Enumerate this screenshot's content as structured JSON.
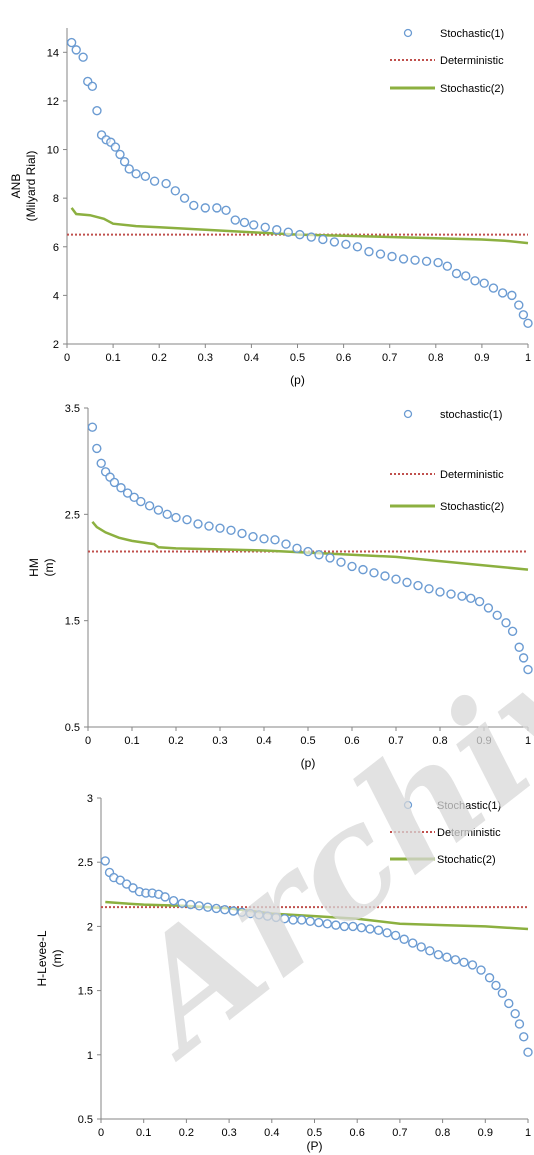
{
  "colors": {
    "stochastic1_marker": "#6b9bd2",
    "deterministic_line": "#c0504d",
    "stochastic2_line": "#8cb040",
    "axis": "#868686"
  },
  "watermark": {
    "text": "Archive"
  },
  "chart_data": [
    {
      "type": "line",
      "xlabel": "(p)",
      "ylabel_lines": [
        "ANB",
        "(Milyard Rial)"
      ],
      "xlim": [
        0,
        1
      ],
      "ylim": [
        2,
        15
      ],
      "xticks": [
        0,
        0.1,
        0.2,
        0.3,
        0.4,
        0.5,
        0.6,
        0.7,
        0.8,
        0.9,
        1
      ],
      "yticks": [
        2,
        4,
        6,
        8,
        10,
        12,
        14
      ],
      "legend_position": "top-right",
      "stoch1_points": [
        [
          0.01,
          14.4
        ],
        [
          0.02,
          14.1
        ],
        [
          0.035,
          13.8
        ],
        [
          0.045,
          12.8
        ],
        [
          0.055,
          12.6
        ],
        [
          0.065,
          11.6
        ],
        [
          0.075,
          10.6
        ],
        [
          0.085,
          10.4
        ],
        [
          0.095,
          10.3
        ],
        [
          0.105,
          10.1
        ],
        [
          0.115,
          9.8
        ],
        [
          0.125,
          9.5
        ],
        [
          0.135,
          9.2
        ],
        [
          0.15,
          9.0
        ],
        [
          0.17,
          8.9
        ],
        [
          0.19,
          8.7
        ],
        [
          0.215,
          8.6
        ],
        [
          0.235,
          8.3
        ],
        [
          0.255,
          8.0
        ],
        [
          0.275,
          7.7
        ],
        [
          0.3,
          7.6
        ],
        [
          0.325,
          7.6
        ],
        [
          0.345,
          7.5
        ],
        [
          0.365,
          7.1
        ],
        [
          0.385,
          7.0
        ],
        [
          0.405,
          6.9
        ],
        [
          0.43,
          6.8
        ],
        [
          0.455,
          6.7
        ],
        [
          0.48,
          6.6
        ],
        [
          0.505,
          6.5
        ],
        [
          0.53,
          6.4
        ],
        [
          0.555,
          6.3
        ],
        [
          0.58,
          6.2
        ],
        [
          0.605,
          6.1
        ],
        [
          0.63,
          6.0
        ],
        [
          0.655,
          5.8
        ],
        [
          0.68,
          5.7
        ],
        [
          0.705,
          5.6
        ],
        [
          0.73,
          5.5
        ],
        [
          0.755,
          5.45
        ],
        [
          0.78,
          5.4
        ],
        [
          0.805,
          5.35
        ],
        [
          0.825,
          5.2
        ],
        [
          0.845,
          4.9
        ],
        [
          0.865,
          4.8
        ],
        [
          0.885,
          4.6
        ],
        [
          0.905,
          4.5
        ],
        [
          0.925,
          4.3
        ],
        [
          0.945,
          4.1
        ],
        [
          0.965,
          4.0
        ],
        [
          0.98,
          3.6
        ],
        [
          0.99,
          3.2
        ],
        [
          1.0,
          2.85
        ]
      ],
      "deterministic_value": 6.5,
      "stoch2_points": [
        [
          0.01,
          7.6
        ],
        [
          0.02,
          7.35
        ],
        [
          0.05,
          7.3
        ],
        [
          0.08,
          7.15
        ],
        [
          0.1,
          6.95
        ],
        [
          0.15,
          6.85
        ],
        [
          0.2,
          6.8
        ],
        [
          0.3,
          6.7
        ],
        [
          0.4,
          6.6
        ],
        [
          0.5,
          6.5
        ],
        [
          0.6,
          6.45
        ],
        [
          0.7,
          6.4
        ],
        [
          0.8,
          6.35
        ],
        [
          0.9,
          6.3
        ],
        [
          0.95,
          6.25
        ],
        [
          1.0,
          6.15
        ]
      ],
      "legend": [
        "Stochastic(1)",
        "Deterministic",
        "Stochastic(2)"
      ]
    },
    {
      "type": "line",
      "xlabel": "(p)",
      "ylabel_lines": [
        "HM",
        "(m)"
      ],
      "xlim": [
        0,
        1
      ],
      "ylim": [
        0.5,
        3.5
      ],
      "xticks": [
        0,
        0.1,
        0.2,
        0.3,
        0.4,
        0.5,
        0.6,
        0.7,
        0.8,
        0.9,
        1
      ],
      "yticks": [
        0.5,
        1.5,
        2.5,
        3.5
      ],
      "legend_position": "top-right",
      "stoch1_points": [
        [
          0.01,
          3.32
        ],
        [
          0.02,
          3.12
        ],
        [
          0.03,
          2.98
        ],
        [
          0.04,
          2.9
        ],
        [
          0.05,
          2.85
        ],
        [
          0.06,
          2.8
        ],
        [
          0.075,
          2.75
        ],
        [
          0.09,
          2.7
        ],
        [
          0.105,
          2.66
        ],
        [
          0.12,
          2.62
        ],
        [
          0.14,
          2.58
        ],
        [
          0.16,
          2.54
        ],
        [
          0.18,
          2.5
        ],
        [
          0.2,
          2.47
        ],
        [
          0.225,
          2.45
        ],
        [
          0.25,
          2.41
        ],
        [
          0.275,
          2.39
        ],
        [
          0.3,
          2.37
        ],
        [
          0.325,
          2.35
        ],
        [
          0.35,
          2.32
        ],
        [
          0.375,
          2.29
        ],
        [
          0.4,
          2.27
        ],
        [
          0.425,
          2.26
        ],
        [
          0.45,
          2.22
        ],
        [
          0.475,
          2.18
        ],
        [
          0.5,
          2.15
        ],
        [
          0.525,
          2.12
        ],
        [
          0.55,
          2.09
        ],
        [
          0.575,
          2.05
        ],
        [
          0.6,
          2.01
        ],
        [
          0.625,
          1.98
        ],
        [
          0.65,
          1.95
        ],
        [
          0.675,
          1.92
        ],
        [
          0.7,
          1.89
        ],
        [
          0.725,
          1.86
        ],
        [
          0.75,
          1.83
        ],
        [
          0.775,
          1.8
        ],
        [
          0.8,
          1.77
        ],
        [
          0.825,
          1.75
        ],
        [
          0.85,
          1.73
        ],
        [
          0.87,
          1.71
        ],
        [
          0.89,
          1.68
        ],
        [
          0.91,
          1.62
        ],
        [
          0.93,
          1.55
        ],
        [
          0.95,
          1.48
        ],
        [
          0.965,
          1.4
        ],
        [
          0.98,
          1.25
        ],
        [
          0.99,
          1.15
        ],
        [
          1.0,
          1.04
        ]
      ],
      "deterministic_value": 2.15,
      "stoch2_points": [
        [
          0.01,
          2.43
        ],
        [
          0.02,
          2.38
        ],
        [
          0.04,
          2.33
        ],
        [
          0.07,
          2.28
        ],
        [
          0.1,
          2.25
        ],
        [
          0.15,
          2.22
        ],
        [
          0.16,
          2.19
        ],
        [
          0.2,
          2.18
        ],
        [
          0.3,
          2.17
        ],
        [
          0.4,
          2.16
        ],
        [
          0.5,
          2.14
        ],
        [
          0.6,
          2.12
        ],
        [
          0.7,
          2.1
        ],
        [
          0.8,
          2.06
        ],
        [
          0.9,
          2.02
        ],
        [
          1.0,
          1.98
        ]
      ],
      "legend": [
        "stochastic(1)",
        "Deterministic",
        "Stochastic(2)"
      ]
    },
    {
      "type": "line",
      "xlabel": "(P)",
      "ylabel_lines": [
        "H-Levee-L",
        "(m)"
      ],
      "xlim": [
        0,
        1
      ],
      "ylim": [
        0.5,
        3
      ],
      "xticks": [
        0,
        0.1,
        0.2,
        0.3,
        0.4,
        0.5,
        0.6,
        0.7,
        0.8,
        0.9,
        1
      ],
      "yticks": [
        0.5,
        1,
        1.5,
        2,
        2.5,
        3
      ],
      "legend_position": "top-right",
      "stoch1_points": [
        [
          0.01,
          2.51
        ],
        [
          0.02,
          2.42
        ],
        [
          0.03,
          2.38
        ],
        [
          0.045,
          2.36
        ],
        [
          0.06,
          2.33
        ],
        [
          0.075,
          2.3
        ],
        [
          0.09,
          2.27
        ],
        [
          0.105,
          2.26
        ],
        [
          0.12,
          2.26
        ],
        [
          0.135,
          2.25
        ],
        [
          0.15,
          2.23
        ],
        [
          0.17,
          2.2
        ],
        [
          0.19,
          2.18
        ],
        [
          0.21,
          2.17
        ],
        [
          0.23,
          2.16
        ],
        [
          0.25,
          2.15
        ],
        [
          0.27,
          2.14
        ],
        [
          0.29,
          2.13
        ],
        [
          0.31,
          2.12
        ],
        [
          0.33,
          2.11
        ],
        [
          0.35,
          2.1
        ],
        [
          0.37,
          2.09
        ],
        [
          0.39,
          2.08
        ],
        [
          0.41,
          2.07
        ],
        [
          0.43,
          2.06
        ],
        [
          0.45,
          2.05
        ],
        [
          0.47,
          2.05
        ],
        [
          0.49,
          2.04
        ],
        [
          0.51,
          2.03
        ],
        [
          0.53,
          2.02
        ],
        [
          0.55,
          2.01
        ],
        [
          0.57,
          2.0
        ],
        [
          0.59,
          2.0
        ],
        [
          0.61,
          1.99
        ],
        [
          0.63,
          1.98
        ],
        [
          0.65,
          1.97
        ],
        [
          0.67,
          1.95
        ],
        [
          0.69,
          1.93
        ],
        [
          0.71,
          1.9
        ],
        [
          0.73,
          1.87
        ],
        [
          0.75,
          1.84
        ],
        [
          0.77,
          1.81
        ],
        [
          0.79,
          1.78
        ],
        [
          0.81,
          1.76
        ],
        [
          0.83,
          1.74
        ],
        [
          0.85,
          1.72
        ],
        [
          0.87,
          1.7
        ],
        [
          0.89,
          1.66
        ],
        [
          0.91,
          1.6
        ],
        [
          0.925,
          1.54
        ],
        [
          0.94,
          1.48
        ],
        [
          0.955,
          1.4
        ],
        [
          0.97,
          1.32
        ],
        [
          0.98,
          1.24
        ],
        [
          0.99,
          1.14
        ],
        [
          1.0,
          1.02
        ]
      ],
      "deterministic_value": 2.15,
      "stoch2_points": [
        [
          0.01,
          2.19
        ],
        [
          0.05,
          2.18
        ],
        [
          0.1,
          2.17
        ],
        [
          0.2,
          2.16
        ],
        [
          0.3,
          2.14
        ],
        [
          0.4,
          2.1
        ],
        [
          0.5,
          2.08
        ],
        [
          0.6,
          2.06
        ],
        [
          0.7,
          2.02
        ],
        [
          0.8,
          2.01
        ],
        [
          0.9,
          2.0
        ],
        [
          1.0,
          1.98
        ]
      ],
      "legend": [
        "Stochastic(1)",
        "Deterministic",
        "Stochatic(2)"
      ]
    }
  ]
}
